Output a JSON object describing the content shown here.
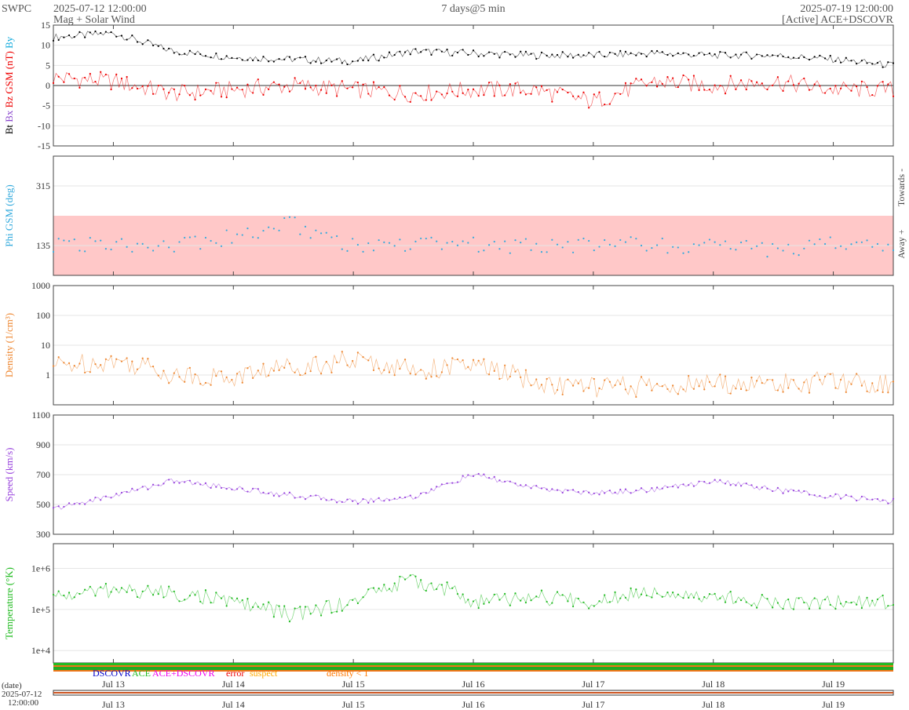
{
  "header": {
    "org": "SWPC",
    "start_time": "2025-07-12 12:00:00",
    "subtitle": "Mag + Solar Wind",
    "span": "7 days@5 min",
    "end_time": "2025-07-19 12:00:00",
    "source": "[Active] ACE+DSCOVR"
  },
  "date_label": "(date)",
  "date_start": [
    "2025-07-12",
    "12:00:00"
  ],
  "x_ticks": [
    "Jul 13",
    "Jul 14",
    "Jul 15",
    "Jul 16",
    "Jul 17",
    "Jul 18",
    "Jul 19"
  ],
  "legend": [
    {
      "label": "DSCOVR",
      "color": "#0000cc"
    },
    {
      "label": "ACE",
      "color": "#22bb22"
    },
    {
      "label": "ACE+DSCOVR",
      "color": "#ee00ee"
    },
    {
      "label": "error",
      "color": "#ee0000"
    },
    {
      "label": "suspect",
      "color": "#ffaa00"
    },
    {
      "label": "density < 1",
      "color": "#ff7700"
    }
  ],
  "chart_data": [
    {
      "type": "line",
      "name": "mag",
      "ylabel_parts": [
        {
          "text": "Bt",
          "color": "#000000"
        },
        {
          "text": "Bx",
          "color": "#8844cc"
        },
        {
          "text": "Bz GSM (nT)",
          "color": "#ee0000"
        },
        {
          "text": "By",
          "color": "#11aadd"
        }
      ],
      "ylim": [
        -15,
        15
      ],
      "y_ticks": [
        "15",
        "10",
        "5",
        "0",
        "-5",
        "-10",
        "-15"
      ],
      "x": [
        0,
        0.5,
        1,
        1.5,
        2,
        2.5,
        3,
        3.5,
        4,
        4.5,
        5,
        5.5,
        6,
        6.5,
        7
      ],
      "series": [
        {
          "name": "Bt",
          "color": "#000000",
          "values": [
            12,
            13,
            8.5,
            7,
            6.5,
            6,
            8.5,
            8,
            7.5,
            7.5,
            8,
            7.5,
            7.5,
            6.5,
            5
          ]
        },
        {
          "name": "Bz",
          "color": "#ee0000",
          "values": [
            2,
            1,
            -2,
            -1,
            0,
            -1,
            -2,
            -1,
            -1,
            -4,
            1,
            0,
            1,
            -1,
            -1
          ]
        }
      ]
    },
    {
      "type": "scatter",
      "name": "phi",
      "ylabel": "Phi GSM (deg)",
      "right_labels": [
        "Towards -",
        "Away +"
      ],
      "y_ticks": [
        "315",
        "135"
      ],
      "ylim": [
        45,
        405
      ],
      "x": [
        0,
        0.5,
        1,
        1.5,
        2,
        2.5,
        3,
        3.5,
        4,
        4.5,
        5,
        5.5,
        6,
        6.5,
        7
      ],
      "values": [
        135,
        140,
        140,
        160,
        200,
        130,
        140,
        135,
        135,
        140,
        135,
        130,
        120,
        140,
        120
      ]
    },
    {
      "type": "line",
      "name": "density",
      "ylabel": "Density (1/cm³)",
      "scale": "log",
      "y_ticks": [
        "1000",
        "100",
        "10",
        "1"
      ],
      "ylim": [
        0.1,
        1000
      ],
      "x": [
        0,
        0.5,
        1,
        1.5,
        2,
        2.5,
        3,
        3.5,
        4,
        4.5,
        5,
        5.5,
        6,
        6.5,
        7
      ],
      "values": [
        2,
        3,
        1,
        0.8,
        2,
        3,
        1.5,
        2,
        0.5,
        0.4,
        0.4,
        0.5,
        0.5,
        0.6,
        0.5
      ]
    },
    {
      "type": "line",
      "name": "speed",
      "ylabel": "Speed (km/s)",
      "y_ticks": [
        "1100",
        "900",
        "700",
        "500",
        "300"
      ],
      "ylim": [
        300,
        1100
      ],
      "x": [
        0,
        0.5,
        1,
        1.5,
        2,
        2.5,
        3,
        3.5,
        4,
        4.5,
        5,
        5.5,
        6,
        6.5,
        7
      ],
      "values": [
        470,
        560,
        660,
        610,
        560,
        520,
        550,
        700,
        610,
        575,
        600,
        660,
        600,
        555,
        520
      ]
    },
    {
      "type": "line",
      "name": "temperature",
      "ylabel": "Temperature (°K)",
      "scale": "log",
      "y_ticks": [
        "1e+6",
        "1e+5",
        "1e+4"
      ],
      "ylim": [
        5000,
        4000000
      ],
      "x": [
        0,
        0.5,
        1,
        1.5,
        2,
        2.5,
        3,
        3.5,
        4,
        4.5,
        5,
        5.5,
        6,
        6.5,
        7
      ],
      "values": [
        200000,
        300000,
        250000,
        150000,
        70000,
        150000,
        500000,
        150000,
        200000,
        150000,
        300000,
        200000,
        150000,
        150000,
        150000
      ]
    }
  ]
}
